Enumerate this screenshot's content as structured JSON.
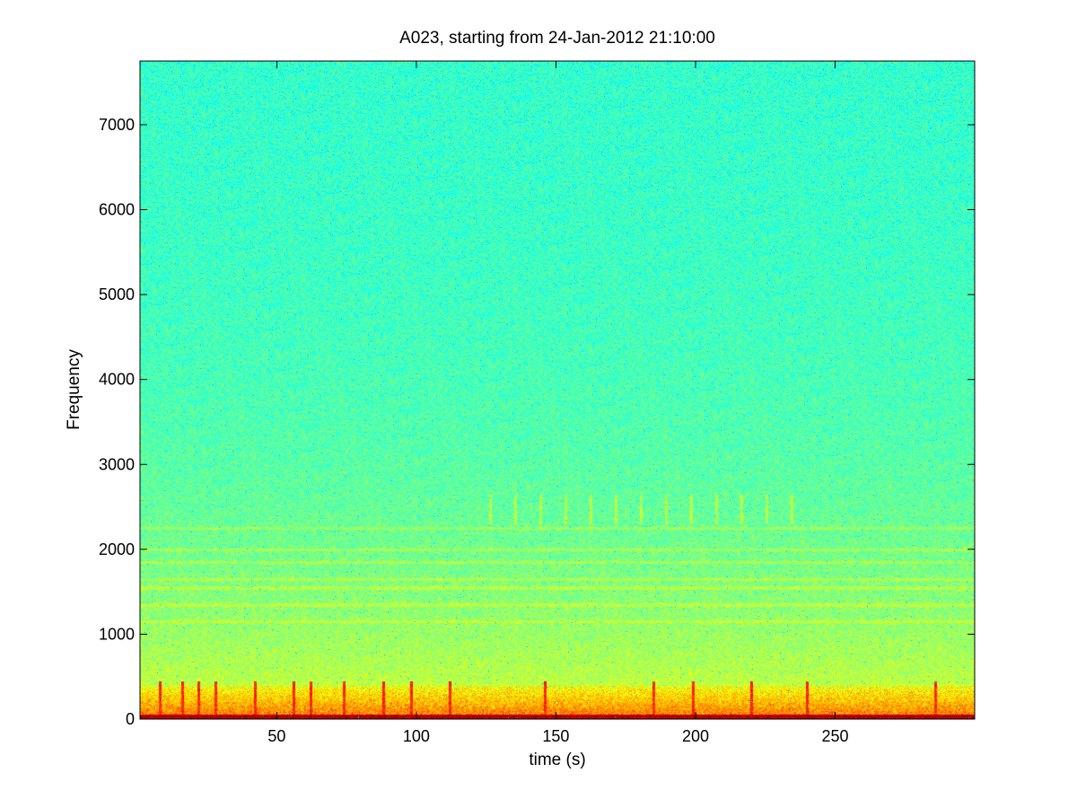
{
  "chart_data": {
    "type": "heatmap",
    "title": "A023, starting from 24-Jan-2012 21:10:00",
    "xlabel": "time (s)",
    "ylabel": "Frequency",
    "xlim": [
      1,
      300
    ],
    "ylim": [
      0,
      7750
    ],
    "x_ticks": [
      50,
      100,
      150,
      200,
      250
    ],
    "y_ticks": [
      0,
      1000,
      2000,
      3000,
      4000,
      5000,
      6000,
      7000
    ],
    "colormap": "jet",
    "colors": {
      "background_high_freq": "#50f0a0",
      "mid_band": "#a0f060",
      "low_band": "#ffff20",
      "near_zero": "#c00000"
    },
    "features": {
      "low_frequency_energy_band_hz": [
        0,
        400
      ],
      "strong_energy_near_zero_hz": [
        0,
        60
      ],
      "tonal_lines_hz": [
        1150,
        1350,
        1550,
        1650,
        1850,
        2000,
        2250
      ],
      "transient_clicks_s": [
        8,
        16,
        22,
        28,
        42,
        56,
        62,
        74,
        88,
        98,
        112,
        146,
        185,
        199,
        220,
        240,
        286
      ],
      "burst_region": {
        "time_s": [
          120,
          240
        ],
        "frequency_hz": [
          2300,
          2650
        ]
      }
    }
  }
}
